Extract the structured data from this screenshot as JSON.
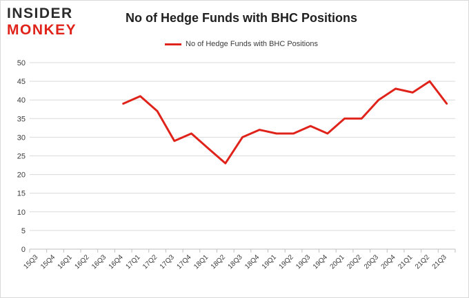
{
  "logo": {
    "line1": "INSIDER",
    "line2": "MONKEY"
  },
  "chart_data": {
    "type": "line",
    "title": "No of Hedge Funds with BHC Positions",
    "xlabel": "",
    "ylabel": "",
    "categories": [
      "15Q3",
      "15Q4",
      "16Q1",
      "16Q2",
      "16Q3",
      "16Q4",
      "17Q1",
      "17Q2",
      "17Q3",
      "17Q4",
      "18Q1",
      "18Q2",
      "18Q3",
      "18Q4",
      "19Q1",
      "19Q2",
      "19Q3",
      "19Q4",
      "20Q1",
      "20Q2",
      "20Q3",
      "20Q4",
      "21Q1",
      "21Q2",
      "21Q3"
    ],
    "series": [
      {
        "name": "No of Hedge Funds with BHC Positions",
        "color": "#e0231a",
        "values": [
          null,
          null,
          null,
          null,
          null,
          39,
          41,
          37,
          29,
          31,
          27,
          23,
          30,
          32,
          31,
          31,
          33,
          31,
          35,
          35,
          40,
          43,
          42,
          45,
          39
        ]
      }
    ],
    "ylim": [
      0,
      50
    ],
    "yticks": [
      0,
      5,
      10,
      15,
      20,
      25,
      30,
      35,
      40,
      45,
      50
    ],
    "grid": true,
    "legend": "top-center"
  }
}
